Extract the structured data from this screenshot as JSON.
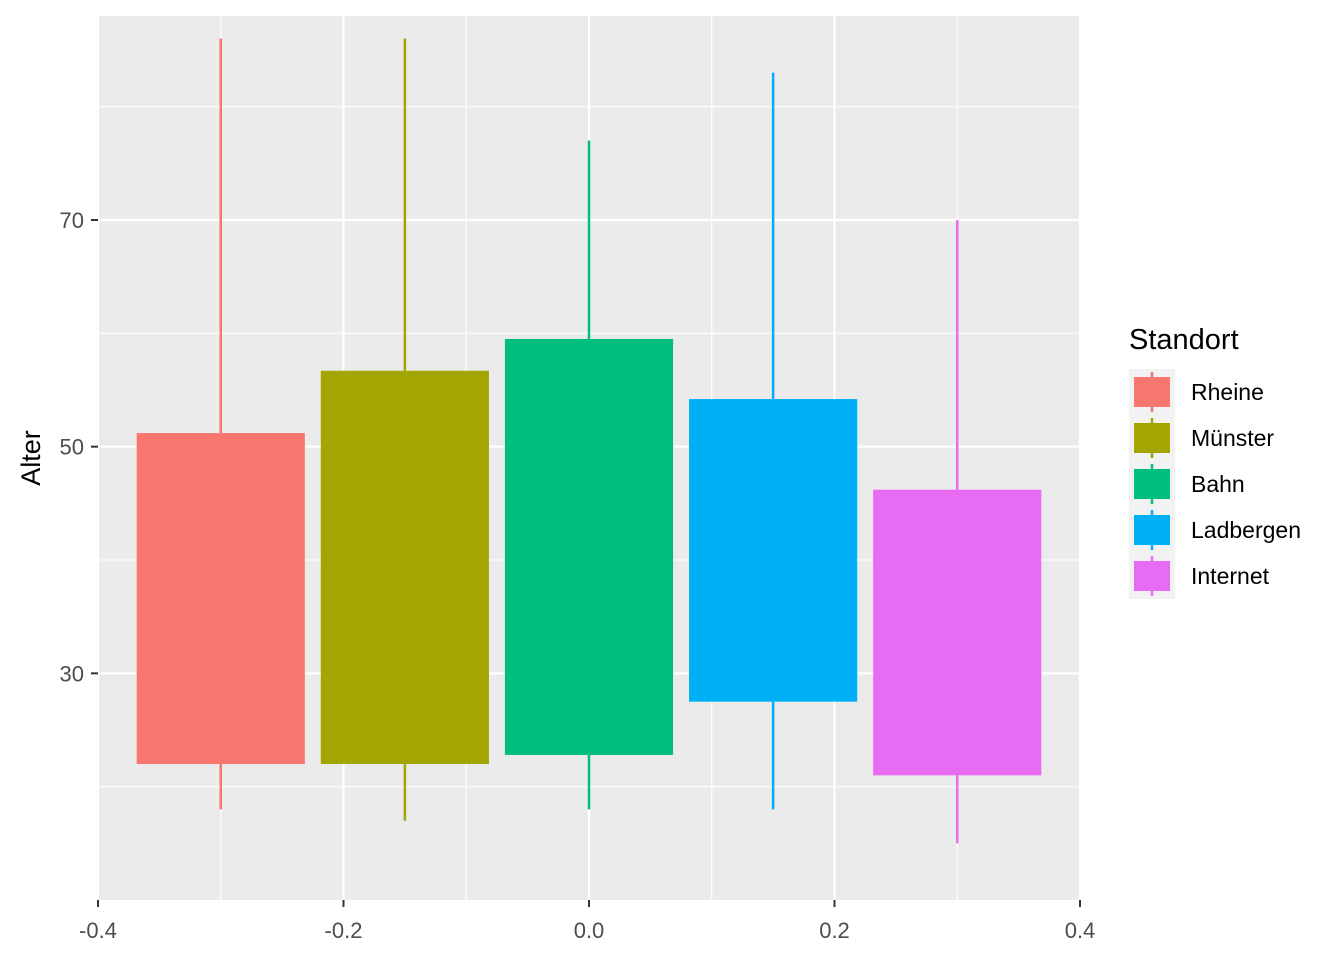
{
  "chart_data": {
    "type": "boxplot",
    "xlabel": "",
    "ylabel": "Alter",
    "xlim": [
      -0.4,
      0.4
    ],
    "ylim": [
      10,
      88
    ],
    "x_ticks": [
      -0.4,
      -0.2,
      0.0,
      0.2,
      0.4
    ],
    "x_tick_labels": [
      "-0.4",
      "-0.2",
      "0.0",
      "0.2",
      "0.4"
    ],
    "y_ticks": [
      30,
      50,
      70
    ],
    "y_tick_labels": [
      "30",
      "50",
      "70"
    ],
    "grid": true,
    "legend": {
      "title": "Standort",
      "position": "right"
    },
    "series": [
      {
        "name": "Rheine",
        "color": "#F8766D",
        "x": -0.3,
        "width": 0.137,
        "lower_whisker": 18,
        "q1": 22.0,
        "q3": 51.2,
        "upper_whisker": 86
      },
      {
        "name": "Münster",
        "color": "#A3A500",
        "x": -0.15,
        "width": 0.137,
        "lower_whisker": 17,
        "q1": 22.0,
        "q3": 56.7,
        "upper_whisker": 86
      },
      {
        "name": "Bahn",
        "color": "#00BF7D",
        "x": 0.0,
        "width": 0.137,
        "lower_whisker": 18,
        "q1": 22.8,
        "q3": 59.5,
        "upper_whisker": 77
      },
      {
        "name": "Ladbergen",
        "color": "#00B0F6",
        "x": 0.15,
        "width": 0.137,
        "lower_whisker": 18,
        "q1": 27.5,
        "q3": 54.2,
        "upper_whisker": 83
      },
      {
        "name": "Internet",
        "color": "#E76BF3",
        "x": 0.3,
        "width": 0.137,
        "lower_whisker": 15,
        "q1": 21.0,
        "q3": 46.2,
        "upper_whisker": 70
      }
    ]
  }
}
